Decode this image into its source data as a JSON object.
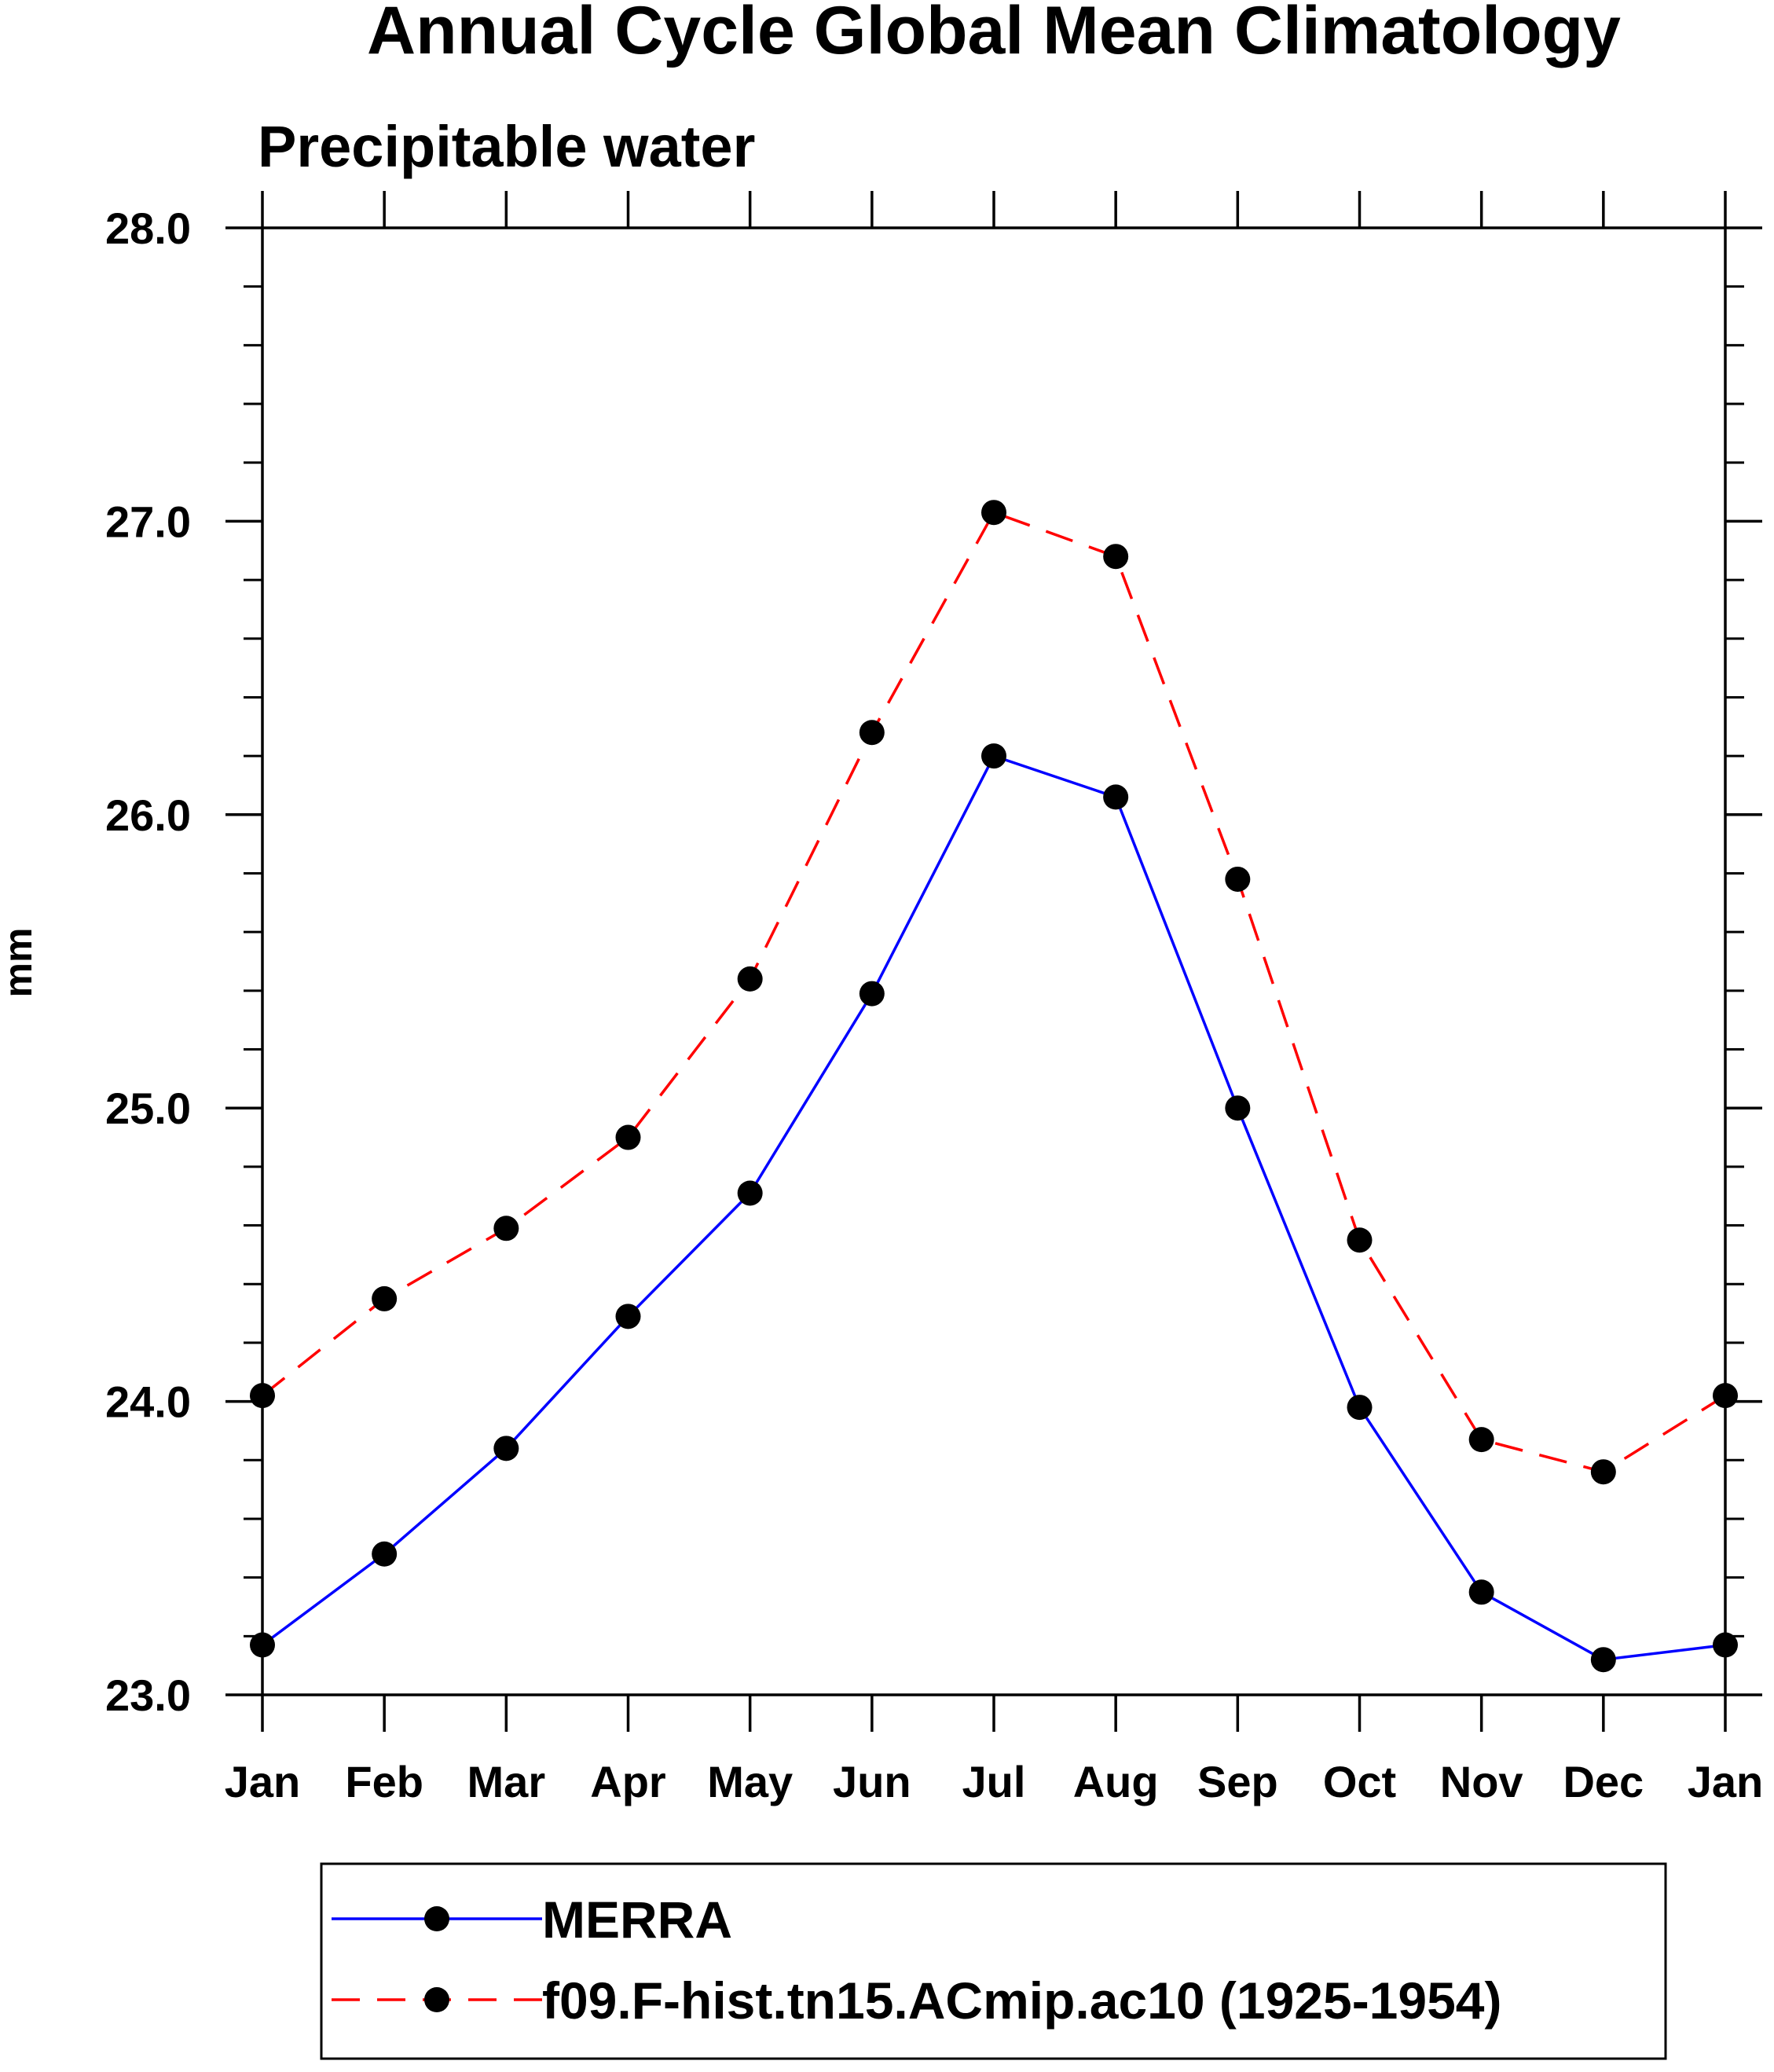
{
  "chart_data": {
    "type": "line",
    "title": "Annual Cycle Global Mean Climatology",
    "subtitle": "Precipitable water",
    "xlabel": "",
    "ylabel": "mm",
    "categories": [
      "Jan",
      "Feb",
      "Mar",
      "Apr",
      "May",
      "Jun",
      "Jul",
      "Aug",
      "Sep",
      "Oct",
      "Nov",
      "Dec",
      "Jan"
    ],
    "ylim": [
      23.0,
      28.0
    ],
    "yticks": [
      "23.0",
      "24.0",
      "25.0",
      "26.0",
      "27.0",
      "28.0"
    ],
    "y_minor_step": 0.2,
    "grid": false,
    "legend_position": "bottom",
    "series": [
      {
        "name": "MERRA",
        "color": "#0000ff",
        "style": "solid",
        "marker": "filled-circle",
        "values": [
          23.17,
          23.48,
          23.84,
          24.29,
          24.71,
          25.39,
          26.2,
          26.06,
          25.0,
          23.98,
          23.35,
          23.12,
          23.17
        ]
      },
      {
        "name": "f09.F-hist.tn15.ACmip.ac10 (1925-1954)",
        "color": "#ff0000",
        "style": "dashed",
        "marker": "filled-circle",
        "values": [
          24.02,
          24.35,
          24.59,
          24.9,
          25.44,
          26.28,
          27.03,
          26.88,
          25.78,
          24.55,
          23.87,
          23.76,
          24.02
        ]
      }
    ]
  }
}
